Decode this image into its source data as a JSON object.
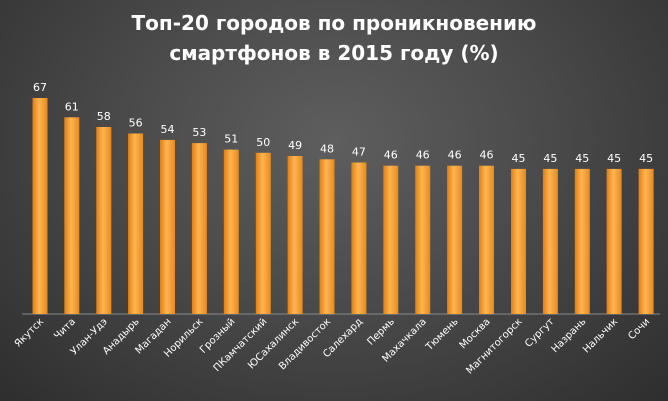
{
  "chart_data": {
    "type": "bar",
    "title": "Топ-20 городов по проникновению\nсмартфонов в 2015 году (%)",
    "categories": [
      "Якутск",
      "Чита",
      "Улан-Удэ",
      "Анадырь",
      "Магадан",
      "Норильск",
      "Грозный",
      "ПКамчатский",
      "ЮСахалинск",
      "Владивосток",
      "Салехард",
      "Пермь",
      "Махачкала",
      "Тюмень",
      "Москва",
      "Магнитогорск",
      "Сургут",
      "Назрань",
      "Нальчик",
      "Сочи"
    ],
    "values": [
      67,
      61,
      58,
      56,
      54,
      53,
      51,
      50,
      49,
      48,
      47,
      46,
      46,
      46,
      46,
      45,
      45,
      45,
      45,
      45
    ],
    "ylim": [
      0,
      70
    ],
    "grid": false,
    "legend": "none",
    "bar_color": "#f39c2a"
  }
}
